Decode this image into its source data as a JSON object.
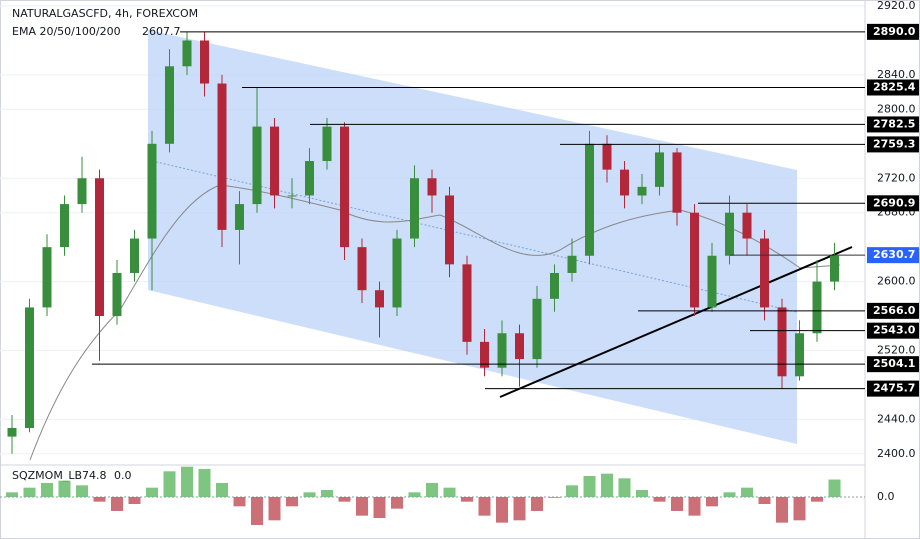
{
  "chart_data": {
    "type": "candlestick",
    "title": "NATURALGASCFD, 4h, FOREXCOM",
    "indicator": "EMA 20/50/100/200",
    "indicator_value": "2607.7",
    "ylim": [
      2387,
      2927
    ],
    "yticks": [
      {
        "value": 2400,
        "label": "2400.0"
      },
      {
        "value": 2440,
        "label": "2440.0"
      },
      {
        "value": 2520,
        "label": "2520.0"
      },
      {
        "value": 2600,
        "label": "2600.0"
      },
      {
        "value": 2680,
        "label": "2680.0"
      },
      {
        "value": 2720,
        "label": "2720.0"
      },
      {
        "value": 2800,
        "label": "2800.0"
      },
      {
        "value": 2840,
        "label": "2840.0"
      },
      {
        "value": 2920,
        "label": "2920.0"
      }
    ],
    "grid": true,
    "up_color": "#388e3c",
    "down_color": "#b2283a",
    "candles": {
      "open": [
        2420,
        2430,
        2570,
        2640,
        2690,
        2720,
        2560,
        2610,
        2650,
        2760,
        2850,
        2880,
        2830,
        2660,
        2690,
        2780,
        2700,
        2700,
        2740,
        2780,
        2640,
        2590,
        2570,
        2650,
        2720,
        2700,
        2620,
        2530,
        2500,
        2540,
        2510,
        2580,
        2610,
        2630,
        2760,
        2730,
        2700,
        2710,
        2750,
        2680,
        2570,
        2630,
        2680,
        2650,
        2570,
        2490,
        2540,
        2600
      ],
      "high": [
        2445,
        2580,
        2655,
        2700,
        2745,
        2730,
        2625,
        2660,
        2775,
        2870,
        2890,
        2890,
        2840,
        2705,
        2825,
        2790,
        2720,
        2755,
        2790,
        2785,
        2650,
        2600,
        2660,
        2735,
        2730,
        2710,
        2630,
        2545,
        2555,
        2550,
        2595,
        2620,
        2650,
        2775,
        2770,
        2740,
        2725,
        2760,
        2755,
        2690,
        2645,
        2700,
        2690,
        2660,
        2580,
        2555,
        2625,
        2645
      ],
      "low": [
        2400,
        2425,
        2560,
        2630,
        2680,
        2508,
        2550,
        2600,
        2590,
        2750,
        2840,
        2815,
        2640,
        2620,
        2680,
        2685,
        2685,
        2690,
        2730,
        2625,
        2575,
        2535,
        2560,
        2640,
        2680,
        2605,
        2515,
        2490,
        2490,
        2478,
        2500,
        2565,
        2600,
        2620,
        2715,
        2685,
        2690,
        2700,
        2665,
        2560,
        2565,
        2620,
        2630,
        2555,
        2476,
        2485,
        2530,
        2590
      ],
      "close": [
        2430,
        2570,
        2640,
        2690,
        2720,
        2560,
        2610,
        2650,
        2760,
        2850,
        2880,
        2830,
        2660,
        2690,
        2780,
        2700,
        2700,
        2740,
        2780,
        2640,
        2590,
        2570,
        2650,
        2720,
        2700,
        2620,
        2530,
        2500,
        2540,
        2510,
        2580,
        2610,
        2630,
        2760,
        2730,
        2700,
        2710,
        2750,
        2680,
        2570,
        2630,
        2680,
        2650,
        2570,
        2490,
        2540,
        2600,
        2630
      ]
    },
    "levels": [
      2890.0,
      2825.4,
      2782.5,
      2759.3,
      2690.9,
      2630.7,
      2566.0,
      2543.0,
      2504.1,
      2475.7
    ],
    "level_labels": [
      "2890.0",
      "2825.4",
      "2782.5",
      "2759.3",
      "2690.9",
      "2630.7",
      "2566.0",
      "2543.0",
      "2504.1",
      "2475.7"
    ],
    "current_level": 5,
    "current_color": "#2962ff",
    "oscillator": {
      "name": "SQZMOM_LB",
      "last_value": "74.8",
      "zero_value": "0.0",
      "ylim": [
        -150,
        150
      ],
      "yticks": [
        {
          "value": 0,
          "label": "0.0"
        }
      ],
      "up_color": "#66bb6a",
      "down_color": "#c2575f",
      "values": [
        20,
        40,
        60,
        70,
        50,
        -20,
        -60,
        -30,
        40,
        110,
        130,
        120,
        60,
        -40,
        -120,
        -100,
        -40,
        20,
        30,
        -20,
        -80,
        -90,
        -50,
        20,
        60,
        40,
        -20,
        -80,
        -110,
        -100,
        -60,
        0,
        50,
        90,
        100,
        80,
        30,
        -20,
        -60,
        -80,
        -40,
        20,
        40,
        -30,
        -110,
        -100,
        -20,
        74.8
      ]
    }
  }
}
